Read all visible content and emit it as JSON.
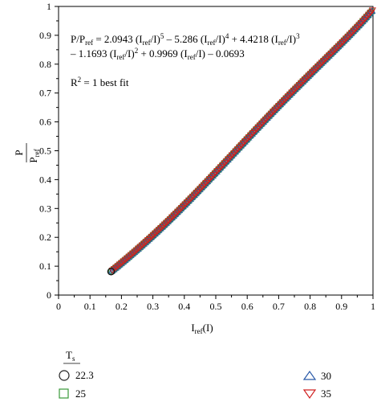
{
  "chart_data": {
    "type": "scatter",
    "equation": {
      "line1": {
        "lhs_p": "P/P",
        "lhs_ref": "ref",
        "eq": " = 2.0943 (I",
        "r1": "ref",
        "m1": "/I)",
        "e1": "5",
        "t2": " – 5.286 (I",
        "r2": "ref",
        "m2": "/I)",
        "e2": "4",
        "t3": " + 4.4218 (I",
        "r3": "ref",
        "m3": "/I)",
        "e3": "3"
      },
      "line2": {
        "a": "– 1.1693 (I",
        "r1": "ref",
        "b": "/I)",
        "e1": "2",
        "c": " + 0.9969 (I",
        "r2": "ref",
        "d": "/I) – 0.0693"
      }
    },
    "r2_label": {
      "pre": "R",
      "sup": "2",
      "post": " = 1 best fit"
    },
    "ylabel": {
      "num": "P",
      "den_main": "P",
      "den_sub": "ref"
    },
    "xlabel": {
      "main": "I",
      "sub": "ref",
      "post": "(I)"
    },
    "xlim": [
      0,
      1
    ],
    "ylim": [
      0,
      1
    ],
    "xticks": [
      "0",
      "0.1",
      "0.2",
      "0.3",
      "0.4",
      "0.5",
      "0.6",
      "0.7",
      "0.8",
      "0.9",
      "1"
    ],
    "yticks": [
      "0",
      "0.1",
      "0.2",
      "0.3",
      "0.4",
      "0.5",
      "0.6",
      "0.7",
      "0.8",
      "0.9",
      "1"
    ],
    "coefficients": [
      2.0943,
      -5.286,
      4.4218,
      -1.1693,
      0.9969,
      -0.0693
    ],
    "x_range": [
      0.167,
      1.0
    ],
    "legend": {
      "title_main": "T",
      "title_sub": "s",
      "placement": "bottom",
      "entries": [
        {
          "label": "22.3",
          "marker": "circle",
          "color": "#222222"
        },
        {
          "label": "25",
          "marker": "square",
          "color": "#3a9a3a"
        },
        {
          "label": "30",
          "marker": "triangle-up",
          "color": "#2a5aa8"
        },
        {
          "label": "35",
          "marker": "triangle-down",
          "color": "#d02020"
        }
      ]
    }
  }
}
